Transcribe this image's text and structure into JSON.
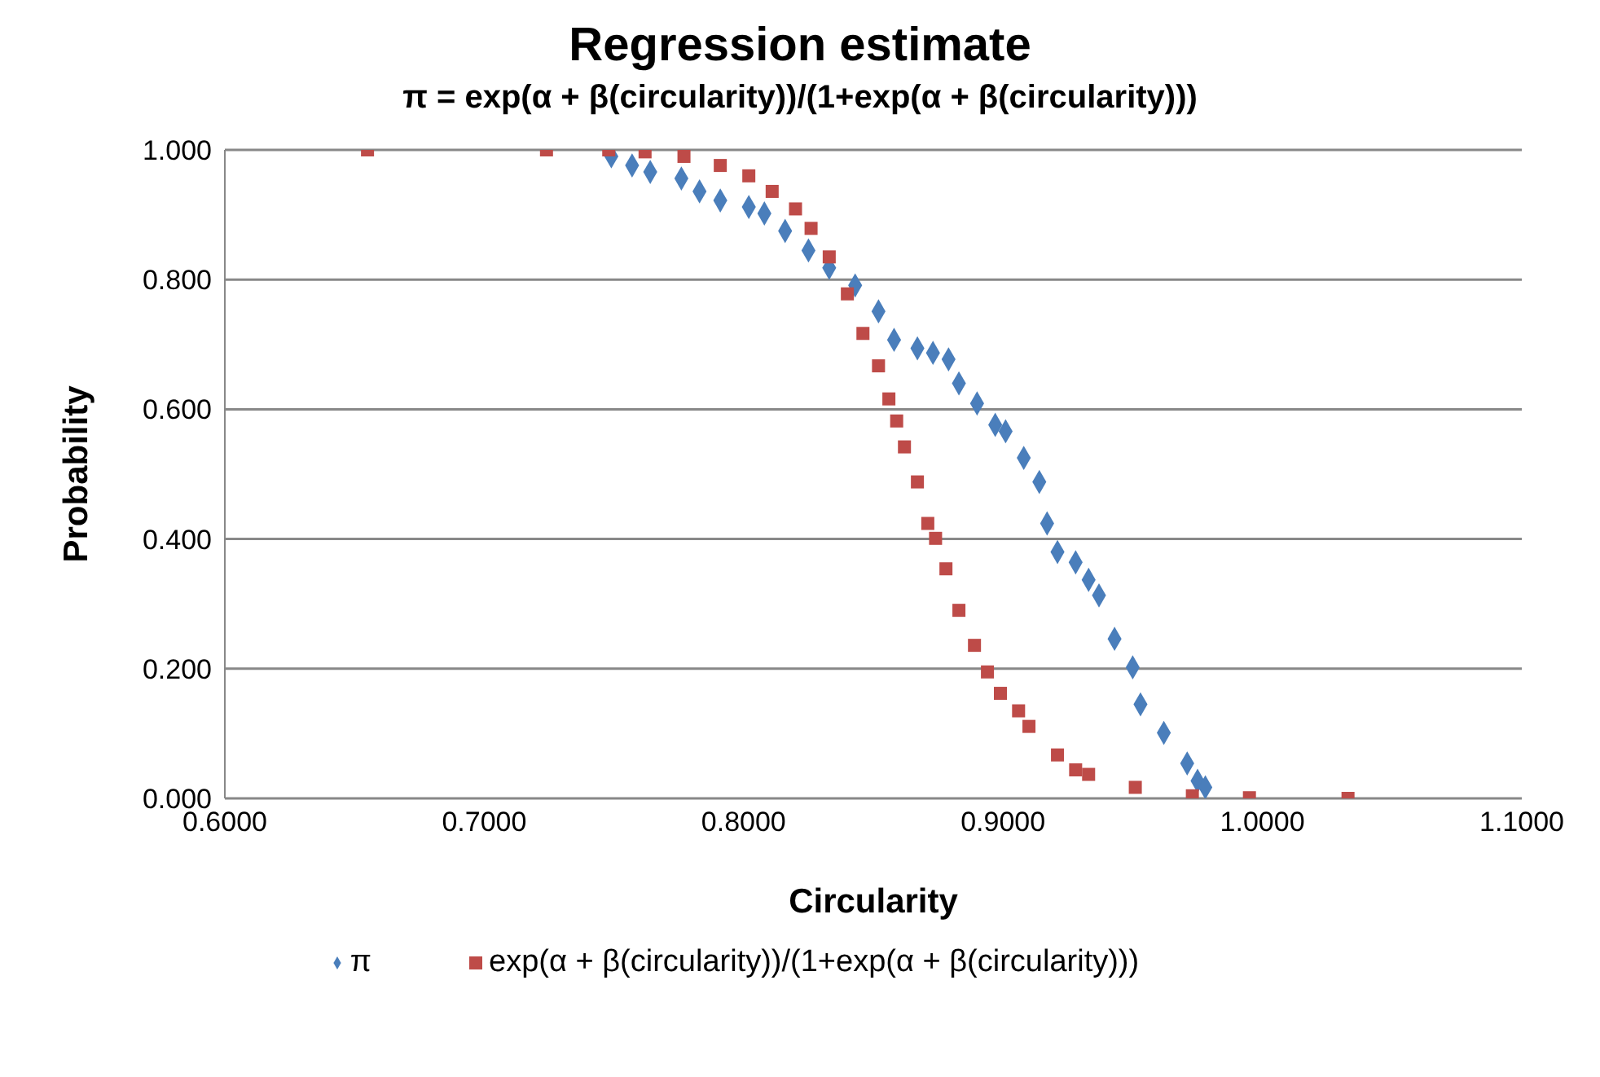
{
  "chart_data": {
    "type": "scatter",
    "title": "Regression estimate",
    "subtitle": "π = exp(α + β(circularity))/(1+exp(α + β(circularity)))",
    "xlabel": "Circularity",
    "ylabel": "Probability",
    "xlim": [
      0.6,
      1.1
    ],
    "xticks": [
      {
        "value": 0.6,
        "label": "0.6000"
      },
      {
        "value": 0.7,
        "label": "0.7000"
      },
      {
        "value": 0.8,
        "label": "0.8000"
      },
      {
        "value": 0.9,
        "label": "0.9000"
      },
      {
        "value": 1.0,
        "label": "1.0000"
      },
      {
        "value": 1.1,
        "label": "1.1000"
      }
    ],
    "ylim": [
      0,
      1
    ],
    "yticks": [
      {
        "value": 0,
        "label": "0.000"
      },
      {
        "value": 0.2,
        "label": "0.200"
      },
      {
        "value": 0.4,
        "label": "0.400"
      },
      {
        "value": 0.6,
        "label": "0.600"
      },
      {
        "value": 0.8,
        "label": "0.800"
      },
      {
        "value": 1,
        "label": "1.000"
      }
    ],
    "grid": "y",
    "legend": "bottom",
    "series": [
      {
        "name": "π",
        "color": "#4a7ebb",
        "marker": "diamond",
        "x": [
          0.749,
          0.757,
          0.764,
          0.776,
          0.783,
          0.791,
          0.802,
          0.808,
          0.816,
          0.825,
          0.833,
          0.843,
          0.852,
          0.858,
          0.867,
          0.873,
          0.879,
          0.883,
          0.89,
          0.897,
          0.901,
          0.908,
          0.914,
          0.917,
          0.921,
          0.928,
          0.933,
          0.937,
          0.943,
          0.95,
          0.953,
          0.962,
          0.971,
          0.975,
          0.978
        ],
        "values": [
          0.99,
          0.976,
          0.966,
          0.956,
          0.936,
          0.922,
          0.912,
          0.902,
          0.875,
          0.845,
          0.818,
          0.791,
          0.751,
          0.707,
          0.694,
          0.687,
          0.677,
          0.64,
          0.609,
          0.576,
          0.566,
          0.525,
          0.488,
          0.424,
          0.38,
          0.364,
          0.337,
          0.313,
          0.246,
          0.202,
          0.145,
          0.101,
          0.054,
          0.027,
          0.017
        ]
      },
      {
        "name": "exp(α + β(circularity))/(1+exp(α + β(circularity)))",
        "color": "#be4b48",
        "marker": "square",
        "x": [
          0.655,
          0.724,
          0.748,
          0.762,
          0.777,
          0.791,
          0.802,
          0.811,
          0.82,
          0.826,
          0.833,
          0.84,
          0.846,
          0.852,
          0.856,
          0.859,
          0.862,
          0.867,
          0.871,
          0.874,
          0.878,
          0.883,
          0.889,
          0.894,
          0.899,
          0.906,
          0.91,
          0.921,
          0.928,
          0.933,
          0.951,
          0.973,
          0.995,
          1.033
        ],
        "values": [
          1.0,
          1.0,
          1.0,
          0.997,
          0.99,
          0.976,
          0.96,
          0.936,
          0.909,
          0.879,
          0.835,
          0.778,
          0.717,
          0.667,
          0.616,
          0.582,
          0.542,
          0.488,
          0.424,
          0.401,
          0.354,
          0.29,
          0.236,
          0.195,
          0.162,
          0.135,
          0.111,
          0.067,
          0.044,
          0.037,
          0.017,
          0.004,
          0.001,
          0.0
        ]
      }
    ]
  }
}
